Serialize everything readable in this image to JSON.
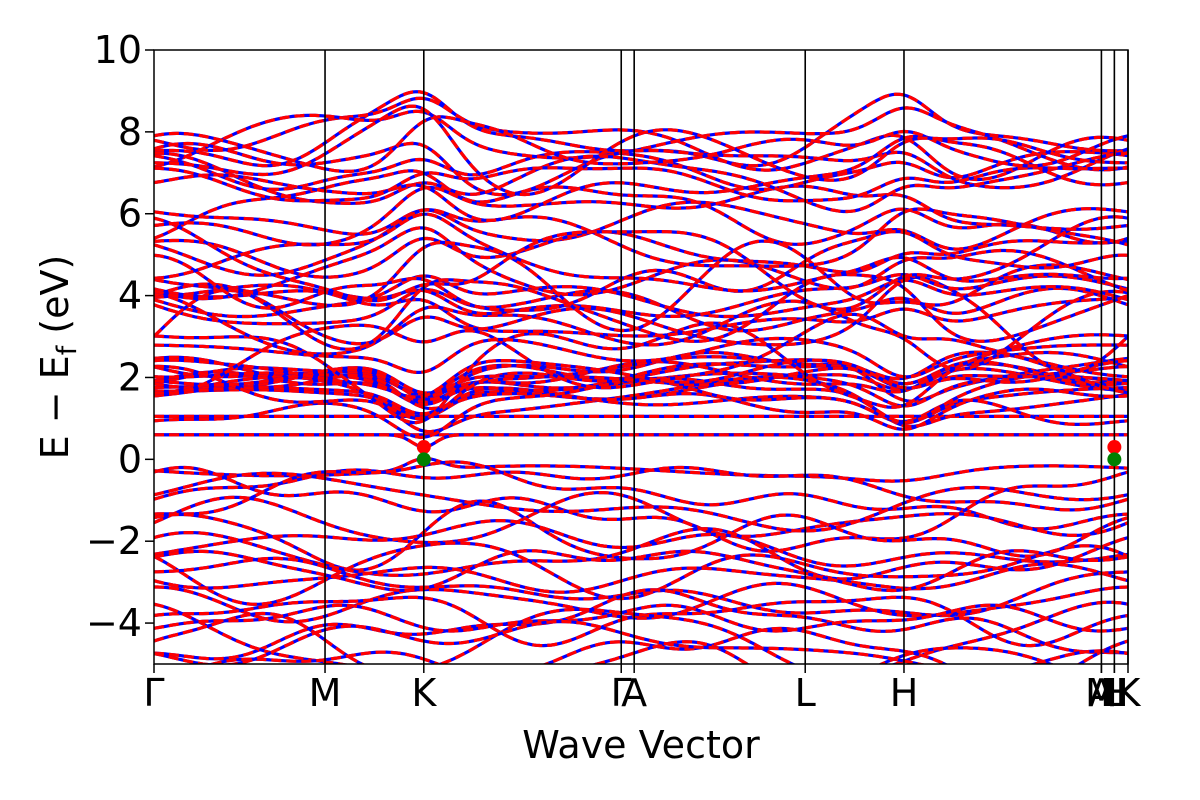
{
  "chart_data": {
    "type": "line",
    "xlabel": "Wave Vector",
    "ylabel": "E − E_f (eV)",
    "ylabel_parts": {
      "main": "E − E",
      "sub": "f",
      "unit": " (eV)"
    },
    "ylim": [
      -5,
      10
    ],
    "y_ticks": [
      10,
      8,
      6,
      4,
      2,
      0,
      -2,
      -4
    ],
    "y_tick_labels": [
      "10",
      "8",
      "6",
      "4",
      "2",
      "0",
      "−2",
      "−4"
    ],
    "xlim": [
      0,
      1
    ],
    "k_points": [
      {
        "label": "Γ",
        "x": 0.0
      },
      {
        "label": "M",
        "x": 0.1756
      },
      {
        "label": "K",
        "x": 0.277
      },
      {
        "label": "Γ",
        "x": 0.4797
      },
      {
        "label": "A",
        "x": 0.493
      },
      {
        "label": "L",
        "x": 0.6686
      },
      {
        "label": "H",
        "x": 0.77
      },
      {
        "label": "A",
        "x": 0.9727
      },
      {
        "label": "M",
        "x": 0.9727
      },
      {
        "label": "L",
        "x": 0.986
      },
      {
        "label": "H",
        "x": 0.986
      },
      {
        "label": "K",
        "x": 1.0
      }
    ],
    "high_symmetry_lines": [
      0.1756,
      0.277,
      0.4797,
      0.493,
      0.6686,
      0.77,
      0.9727,
      0.986,
      1.0
    ],
    "series": [
      {
        "style": "solid",
        "color": "#0000ff"
      },
      {
        "style": "dashed",
        "color": "#ff0000"
      }
    ],
    "flat_bands": [
      0.6,
      1.05
    ],
    "band_edges": {
      "cbm": 0.3,
      "vbm": 0.0,
      "vbm_color": "#008000",
      "cbm_color": "#ff0000"
    },
    "extrema_markers": [
      {
        "x": 0.277,
        "y": 0.3,
        "color": "#ff0000"
      },
      {
        "x": 0.277,
        "y": 0.0,
        "color": "#008000"
      },
      {
        "x": 0.986,
        "y": 0.3,
        "color": "#ff0000"
      },
      {
        "x": 0.986,
        "y": 0.0,
        "color": "#008000"
      }
    ],
    "grid": false,
    "legend": "none"
  }
}
